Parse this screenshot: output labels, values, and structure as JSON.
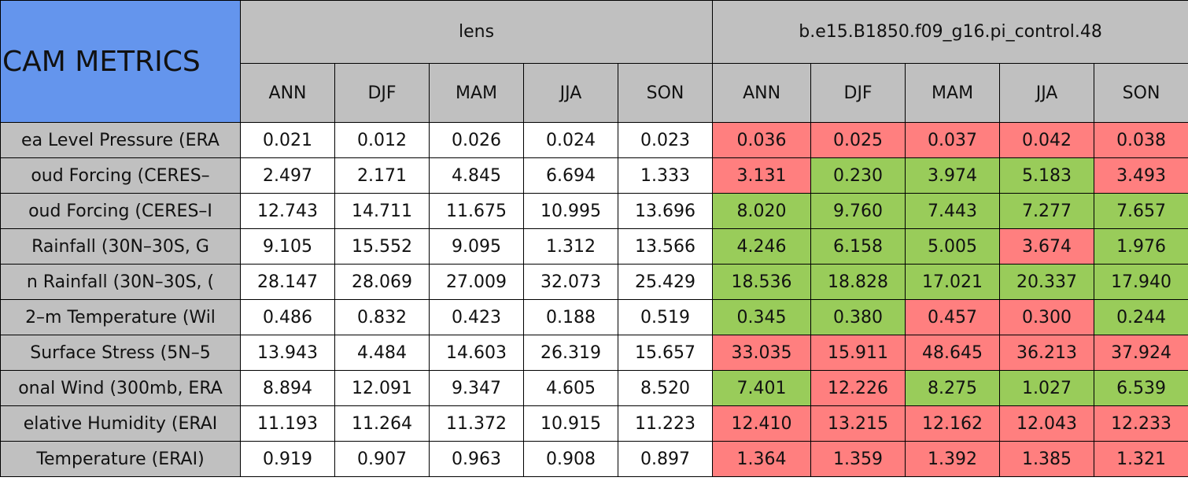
{
  "table": {
    "title": "CAM METRICS",
    "groups": [
      "lens",
      "b.e15.B1850.f09_g16.pi_control.48"
    ],
    "seasons": [
      "ANN",
      "DJF",
      "MAM",
      "JJA",
      "SON"
    ],
    "colors": {
      "worse": "#ff7f7f",
      "better": "#99cc5a"
    },
    "rows": [
      {
        "label": "ea Level Pressure (ERA",
        "lens": [
          "0.021",
          "0.012",
          "0.026",
          "0.024",
          "0.023"
        ],
        "control": [
          "0.036",
          "0.025",
          "0.037",
          "0.042",
          "0.038"
        ],
        "status": [
          "worse",
          "worse",
          "worse",
          "worse",
          "worse"
        ]
      },
      {
        "label": "oud Forcing (CERES–",
        "lens": [
          "2.497",
          "2.171",
          "4.845",
          "6.694",
          "1.333"
        ],
        "control": [
          "3.131",
          "0.230",
          "3.974",
          "5.183",
          "3.493"
        ],
        "status": [
          "worse",
          "better",
          "better",
          "better",
          "worse"
        ]
      },
      {
        "label": "oud Forcing (CERES–I",
        "lens": [
          "12.743",
          "14.711",
          "11.675",
          "10.995",
          "13.696"
        ],
        "control": [
          "8.020",
          "9.760",
          "7.443",
          "7.277",
          "7.657"
        ],
        "status": [
          "better",
          "better",
          "better",
          "better",
          "better"
        ]
      },
      {
        "label": "Rainfall (30N–30S, G",
        "lens": [
          "9.105",
          "15.552",
          "9.095",
          "1.312",
          "13.566"
        ],
        "control": [
          "4.246",
          "6.158",
          "5.005",
          "3.674",
          "1.976"
        ],
        "status": [
          "better",
          "better",
          "better",
          "worse",
          "better"
        ]
      },
      {
        "label": "n Rainfall (30N–30S, (",
        "lens": [
          "28.147",
          "28.069",
          "27.009",
          "32.073",
          "25.429"
        ],
        "control": [
          "18.536",
          "18.828",
          "17.021",
          "20.337",
          "17.940"
        ],
        "status": [
          "better",
          "better",
          "better",
          "better",
          "better"
        ]
      },
      {
        "label": "2–m Temperature (Wil",
        "lens": [
          "0.486",
          "0.832",
          "0.423",
          "0.188",
          "0.519"
        ],
        "control": [
          "0.345",
          "0.380",
          "0.457",
          "0.300",
          "0.244"
        ],
        "status": [
          "better",
          "better",
          "worse",
          "worse",
          "better"
        ]
      },
      {
        "label": "Surface Stress (5N–5",
        "lens": [
          "13.943",
          "4.484",
          "14.603",
          "26.319",
          "15.657"
        ],
        "control": [
          "33.035",
          "15.911",
          "48.645",
          "36.213",
          "37.924"
        ],
        "status": [
          "worse",
          "worse",
          "worse",
          "worse",
          "worse"
        ]
      },
      {
        "label": "onal Wind (300mb, ERA",
        "lens": [
          "8.894",
          "12.091",
          "9.347",
          "4.605",
          "8.520"
        ],
        "control": [
          "7.401",
          "12.226",
          "8.275",
          "1.027",
          "6.539"
        ],
        "status": [
          "better",
          "worse",
          "better",
          "better",
          "better"
        ]
      },
      {
        "label": "elative Humidity (ERAI",
        "lens": [
          "11.193",
          "11.264",
          "11.372",
          "10.915",
          "11.223"
        ],
        "control": [
          "12.410",
          "13.215",
          "12.162",
          "12.043",
          "12.233"
        ],
        "status": [
          "worse",
          "worse",
          "worse",
          "worse",
          "worse"
        ]
      },
      {
        "label": "Temperature (ERAI)",
        "lens": [
          "0.919",
          "0.907",
          "0.963",
          "0.908",
          "0.897"
        ],
        "control": [
          "1.364",
          "1.359",
          "1.392",
          "1.385",
          "1.321"
        ],
        "status": [
          "worse",
          "worse",
          "worse",
          "worse",
          "worse"
        ]
      }
    ]
  }
}
